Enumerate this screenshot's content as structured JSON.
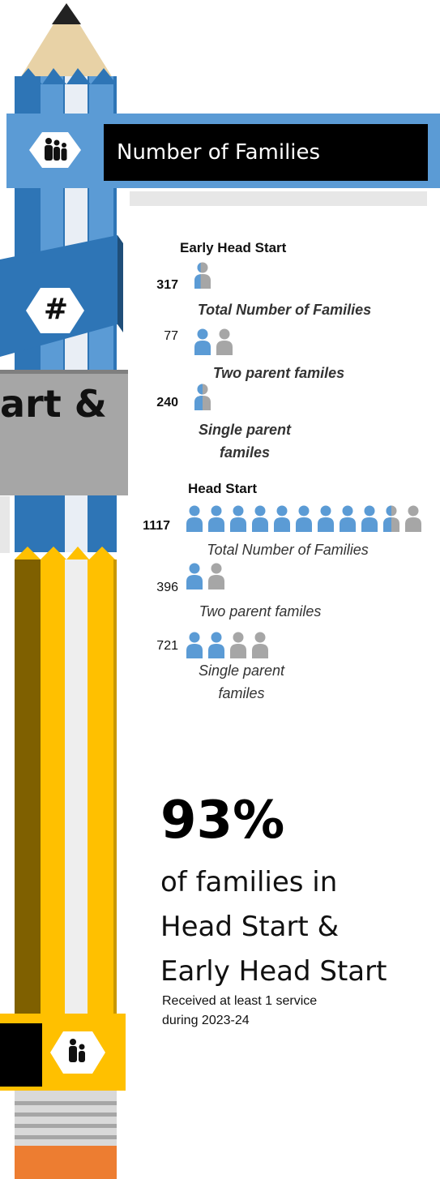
{
  "header": {
    "title": "Number of Families",
    "badge_icon": "family-icon"
  },
  "hash_badge": "#",
  "side_banner_text": "art &",
  "early_head_start": {
    "title": "Early Head Start",
    "rows": [
      {
        "count": "317",
        "caption": "Total Number of Families",
        "icons_full": 0,
        "icons_partial_fill": 0.4,
        "icons_empty": 0
      },
      {
        "count": "77",
        "caption": "Two parent familes",
        "icons_full": 1,
        "icons_partial_fill": 0,
        "icons_empty": 1
      },
      {
        "count": "240",
        "caption_line1": "Single parent",
        "caption_line2": "familes",
        "icons_full": 0,
        "icons_partial_fill": 0.5,
        "icons_empty": 0
      }
    ]
  },
  "head_start": {
    "title": "Head Start",
    "rows": [
      {
        "count": "1117",
        "caption": "Total Number of Families",
        "icons_full": 9,
        "icons_partial_fill": 0.5,
        "icons_empty": 1
      },
      {
        "count": "396",
        "caption": "Two parent familes",
        "icons_full": 1,
        "icons_partial_fill": 0,
        "icons_empty": 1
      },
      {
        "count": "721",
        "caption_line1": "Single parent",
        "caption_line2": "familes",
        "icons_full": 2,
        "icons_partial_fill": 0,
        "icons_empty": 2
      }
    ]
  },
  "stat": {
    "percent": "93%",
    "line1": "of families in",
    "line2": "Head Start &",
    "line3": "Early Head Start",
    "note1": "Received at least 1 service",
    "note2": "during 2023-24"
  },
  "colors": {
    "blue": "#5b9bd5",
    "gray": "#a6a6a6",
    "yellow": "#ffc000",
    "brown": "#7f6000",
    "black": "#000000"
  }
}
